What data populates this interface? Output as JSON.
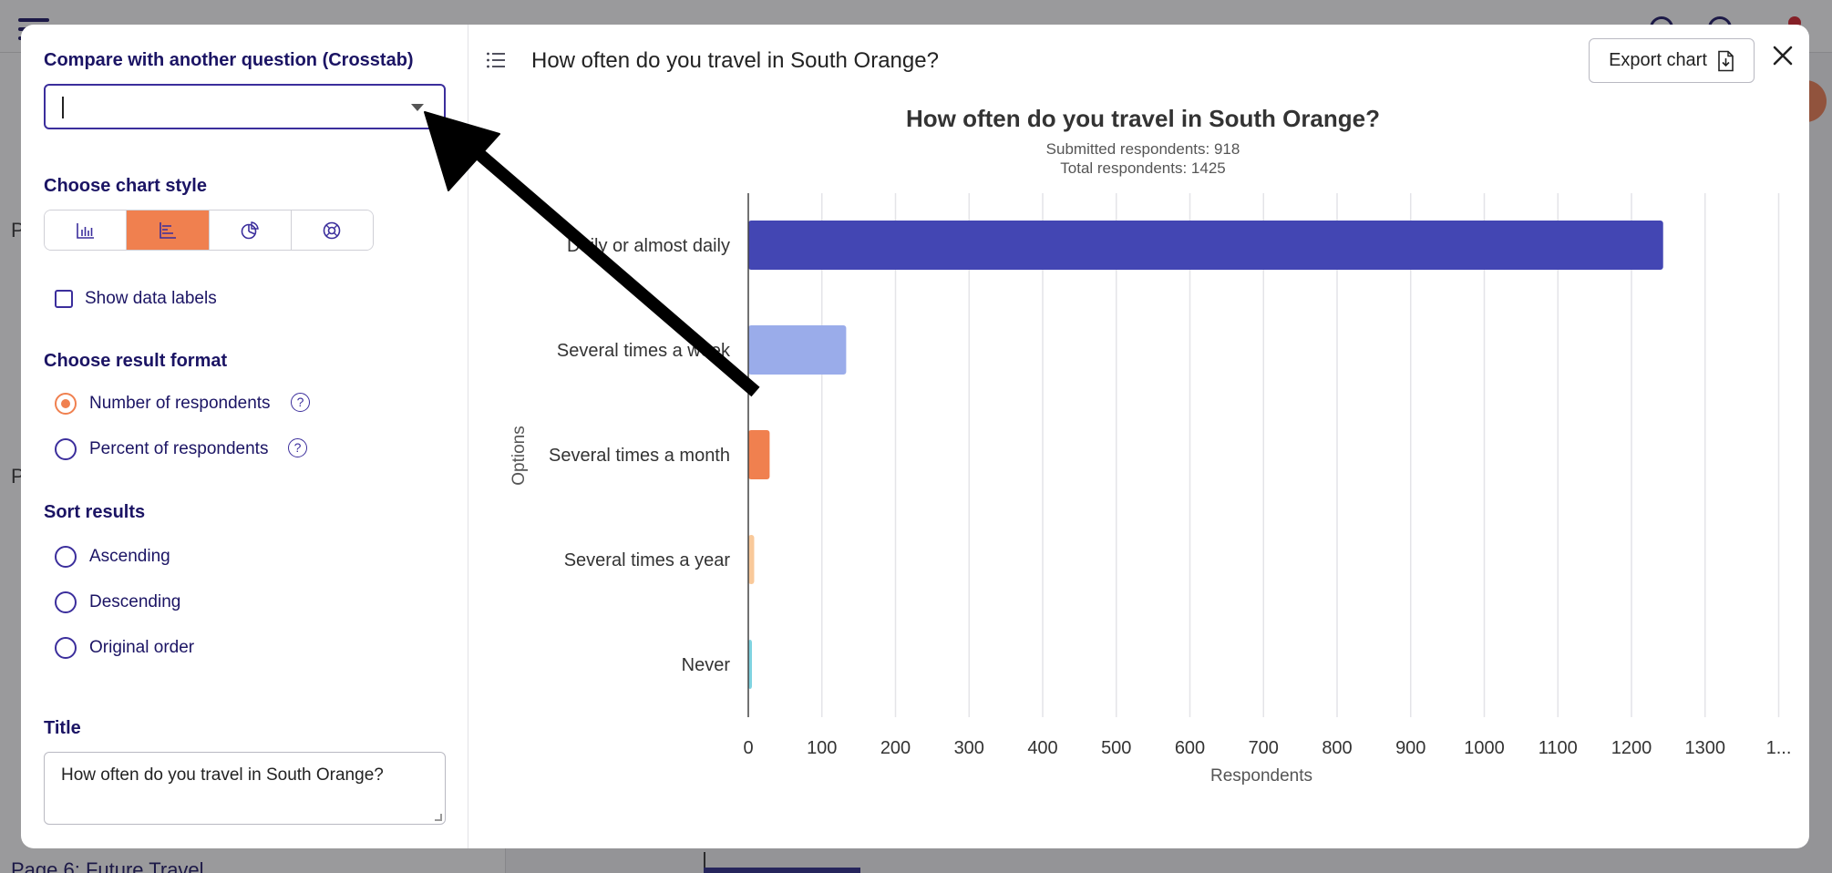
{
  "background": {
    "sidebar_footer": "Page 6: Future Travel",
    "sidebar_p1": "P",
    "sidebar_p2": "P"
  },
  "left_panel": {
    "crosstab_label": "Compare with another question (Crosstab)",
    "crosstab_value": "",
    "chart_style_label": "Choose chart style",
    "chart_styles": [
      "column-chart-icon",
      "bar-chart-icon",
      "pie-chart-icon",
      "donut-chart-icon"
    ],
    "active_style": "bar-chart-icon",
    "show_data_labels": "Show data labels",
    "result_format_label": "Choose result format",
    "result_formats": [
      "Number of respondents",
      "Percent of respondents"
    ],
    "selected_format": "Number of respondents",
    "sort_label": "Sort results",
    "sort_options": [
      "Ascending",
      "Descending",
      "Original order"
    ],
    "title_label": "Title",
    "title_value": "How often do you travel in South Orange?"
  },
  "header": {
    "title": "How often do you travel in South Orange?",
    "export_label": "Export chart"
  },
  "colors": {
    "accent": "#f0804f",
    "primary": "#1b1464",
    "bar1": "#4346b3",
    "bar2": "#9aacea",
    "bar3": "#f0804f",
    "bar4": "#f9c99a",
    "bar5": "#7fd3e0"
  },
  "chart_data": {
    "type": "bar",
    "orientation": "horizontal",
    "title": "How often do you travel in South Orange?",
    "subtitle_1": "Submitted respondents: 918",
    "subtitle_2": "Total respondents: 1425",
    "categories": [
      "Daily or almost daily",
      "Several times a week",
      "Several times a month",
      "Several times a year",
      "Never"
    ],
    "values": [
      1243,
      133,
      29,
      8,
      3
    ],
    "xlabel": "Respondents",
    "ylabel": "Options",
    "xlim": [
      0,
      1400
    ],
    "xticks": [
      "0",
      "100",
      "200",
      "300",
      "400",
      "500",
      "600",
      "700",
      "800",
      "900",
      "1000",
      "1100",
      "1200",
      "1300",
      "1..."
    ],
    "grid": true
  }
}
